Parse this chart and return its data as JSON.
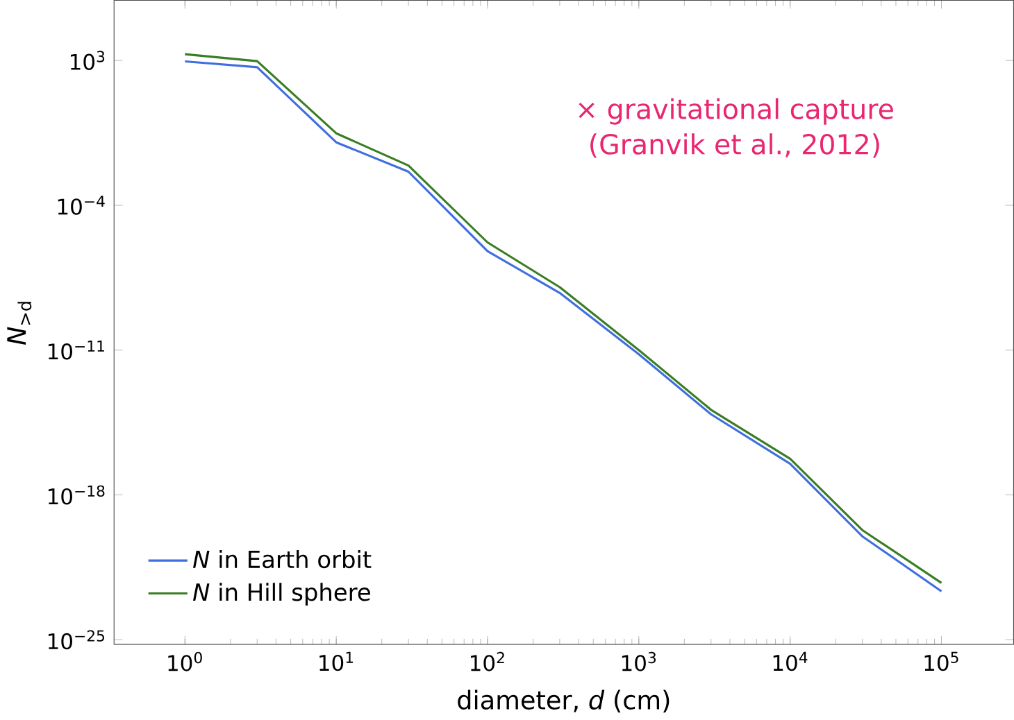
{
  "chart_data": {
    "type": "line",
    "xlabel": "diameter, *d* (cm)",
    "ylabel": "*N*$_{>d}$",
    "log": "xy",
    "legend": "bottom left",
    "grid": false,
    "xlim": [
      0.34,
      300000
    ],
    "ylim": [
      6e-26,
      800000.0
    ],
    "xticks": [
      {
        "value": 1,
        "label": "10$^{0}$"
      },
      {
        "value": 10,
        "label": "10$^{1}$"
      },
      {
        "value": 100,
        "label": "10$^{2}$"
      },
      {
        "value": 1000,
        "label": "10$^{3}$"
      },
      {
        "value": 10000,
        "label": "10$^{4}$"
      },
      {
        "value": 100000,
        "label": "10$^{5}$"
      }
    ],
    "yticks": [
      {
        "value": 1000.0,
        "label": "10$^{3}$"
      },
      {
        "value": 0.0001,
        "label": "10$^{−4}$"
      },
      {
        "value": 1e-11,
        "label": "10$^{−11}$"
      },
      {
        "value": 1e-18,
        "label": "10$^{−18}$"
      },
      {
        "value": 1e-25,
        "label": "10$^{−25}$"
      }
    ],
    "x": [
      1,
      3,
      10,
      30,
      100,
      300,
      1000,
      3000,
      10000,
      30000,
      100000
    ],
    "series": [
      {
        "name": "*N* in Earth orbit",
        "color": "#3f6fdf",
        "values": [
          900.0,
          470.0,
          0.11,
          0.0042,
          6e-07,
          5.8e-09,
          6.3e-12,
          7.9e-15,
          3.2e-17,
          1e-20,
          2.2e-23
        ]
      },
      {
        "name": "*N* in Hill sphere",
        "color": "#3a7d22",
        "values": [
          2000.0,
          930.0,
          0.3,
          0.0083,
          1.6e-06,
          1.1e-08,
          1e-11,
          1.3e-14,
          5.6e-17,
          2e-20,
          5.6e-23
        ]
      }
    ],
    "annotations": [
      "× gravitational capture",
      "(Granvik et al., 2012)"
    ]
  }
}
